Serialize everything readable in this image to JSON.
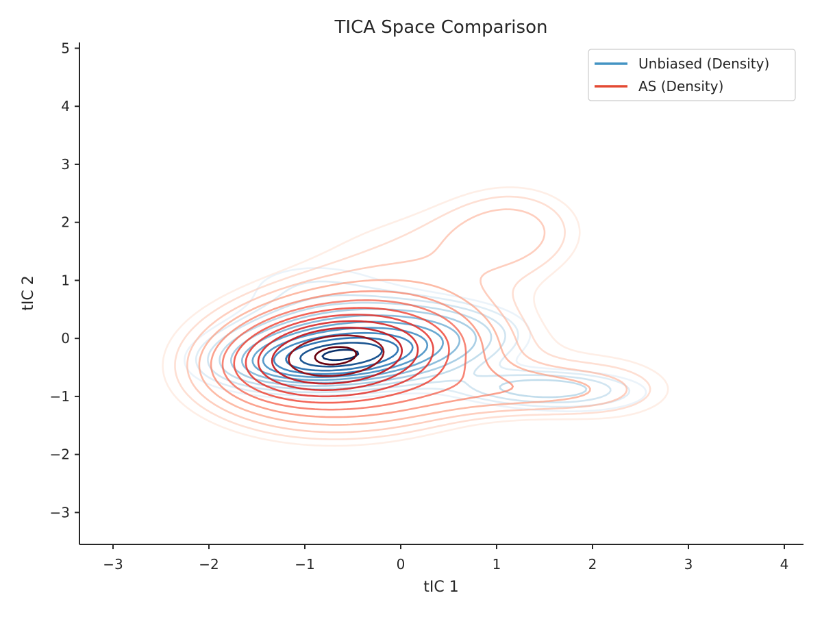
{
  "chart_data": {
    "type": "contour",
    "title": "TICA Space Comparison",
    "xlabel": "tIC 1",
    "ylabel": "tIC 2",
    "xlim": [
      -3.35,
      4.2
    ],
    "ylim": [
      -3.55,
      5.1
    ],
    "xticks": [
      -3,
      -2,
      -1,
      0,
      1,
      2,
      3,
      4
    ],
    "yticks": [
      -3,
      -2,
      -1,
      0,
      1,
      2,
      3,
      4,
      5
    ],
    "xtick_labels": [
      "−3",
      "−2",
      "−1",
      "0",
      "1",
      "2",
      "3",
      "4"
    ],
    "ytick_labels": [
      "−3",
      "−2",
      "−1",
      "0",
      "1",
      "2",
      "3",
      "4",
      "5"
    ],
    "grid": false,
    "legend_position": "top-right",
    "levels": 12,
    "series": [
      {
        "name": "Unbiased (Density)",
        "color": "#4393c3",
        "colormap": "Blues",
        "components": [
          {
            "weight": 1.0,
            "mean": [
              -0.65,
              -0.3
            ],
            "sx": 0.42,
            "sy": 0.2,
            "rho": 0.3
          },
          {
            "weight": 0.45,
            "mean": [
              -0.45,
              -0.15
            ],
            "sx": 0.85,
            "sy": 0.42,
            "rho": 0.25
          },
          {
            "weight": 0.12,
            "mean": [
              1.45,
              -0.85
            ],
            "sx": 0.6,
            "sy": 0.2,
            "rho": 0.0
          },
          {
            "weight": 0.04,
            "mean": [
              2.0,
              -1.1
            ],
            "sx": 0.8,
            "sy": 0.35,
            "rho": 0.0
          },
          {
            "weight": 0.06,
            "mean": [
              -0.9,
              0.9
            ],
            "sx": 0.75,
            "sy": 0.45,
            "rho": 0.0
          },
          {
            "weight": 0.015,
            "mean": [
              1.3,
              2.2
            ],
            "sx": 0.3,
            "sy": 0.18,
            "rho": 0.0
          }
        ]
      },
      {
        "name": "AS (Density)",
        "color": "#e34a33",
        "colormap": "Reds",
        "components": [
          {
            "weight": 1.0,
            "mean": [
              -0.7,
              -0.3
            ],
            "sx": 0.5,
            "sy": 0.35,
            "rho": 0.2
          },
          {
            "weight": 0.4,
            "mean": [
              -0.5,
              -0.3
            ],
            "sx": 0.95,
            "sy": 0.75,
            "rho": 0.1
          },
          {
            "weight": 0.08,
            "mean": [
              1.2,
              1.9
            ],
            "sx": 0.55,
            "sy": 0.6,
            "rho": 0.0
          },
          {
            "weight": 0.1,
            "mean": [
              1.4,
              -0.9
            ],
            "sx": 0.75,
            "sy": 0.3,
            "rho": 0.0
          },
          {
            "weight": 0.04,
            "mean": [
              2.3,
              -0.8
            ],
            "sx": 0.6,
            "sy": 0.7,
            "rho": 0.0
          },
          {
            "weight": 0.05,
            "mean": [
              0.2,
              1.6
            ],
            "sx": 0.9,
            "sy": 0.6,
            "rho": 0.0
          }
        ]
      }
    ]
  }
}
